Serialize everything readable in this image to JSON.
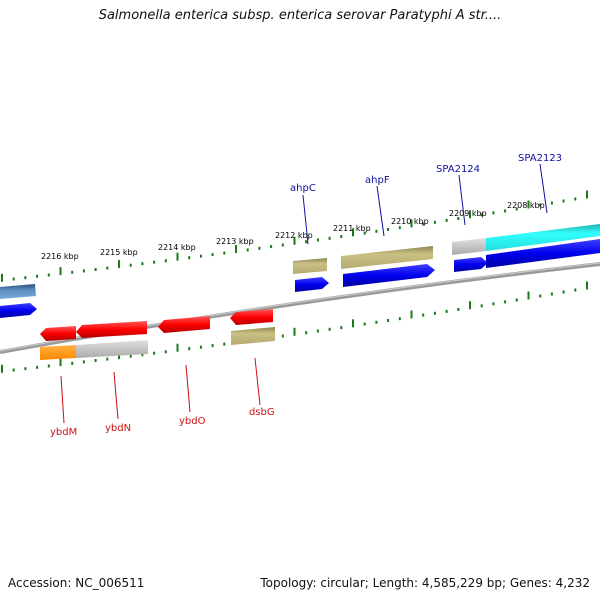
{
  "title": "Salmonella enterica subsp. enterica serovar Paratyphi A str....",
  "footer": {
    "accession": "Accession: NC_006511",
    "topology": "Topology: circular; Length: 4,585,229 bp; Genes: 4,232"
  },
  "colors": {
    "forward_label": "#1010a0",
    "reverse_label": "#cc1111",
    "tick": "#1a7a1a",
    "backbone": "#808080"
  },
  "kbp_labels": [
    {
      "text": "2216 kbp"
    },
    {
      "text": "2215 kbp"
    },
    {
      "text": "2214 kbp"
    },
    {
      "text": "2213 kbp"
    },
    {
      "text": "2212 kbp"
    },
    {
      "text": "2211 kbp"
    },
    {
      "text": "2210 kbp"
    },
    {
      "text": "2209 kbp"
    },
    {
      "text": "2208 kbp"
    }
  ],
  "forward_labels": [
    {
      "name": "ahpC"
    },
    {
      "name": "ahpF"
    },
    {
      "name": "SPA2124"
    },
    {
      "name": "SPA2123"
    }
  ],
  "reverse_labels": [
    {
      "name": "ybdM"
    },
    {
      "name": "ybdN"
    },
    {
      "name": "ybdO"
    },
    {
      "name": "dsbG"
    }
  ]
}
